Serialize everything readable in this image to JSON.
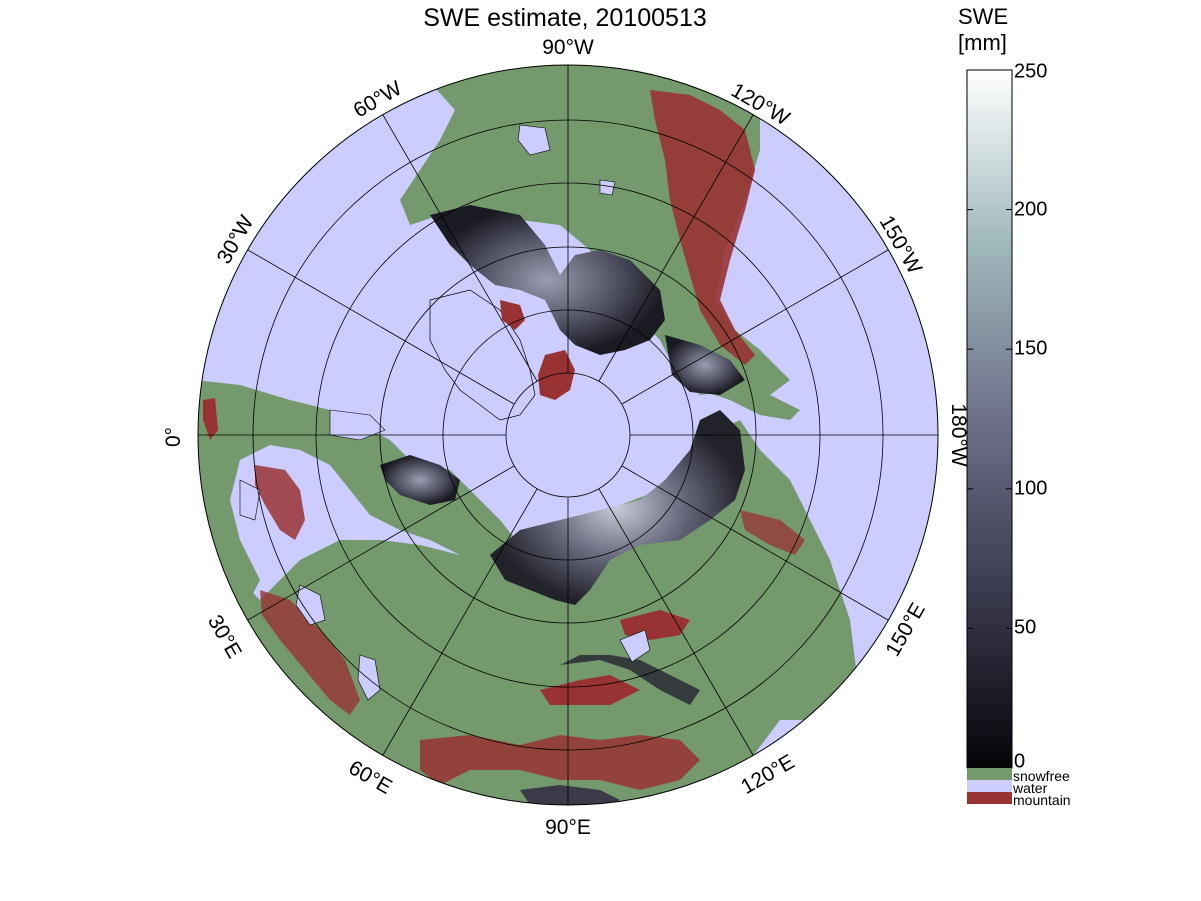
{
  "title": "SWE estimate, 20100513",
  "colorbar": {
    "label_line1": "SWE",
    "label_line2": "[mm]",
    "ticks": [
      "250",
      "200",
      "150",
      "100",
      "50",
      "0"
    ],
    "range": [
      0,
      250
    ],
    "categories": [
      {
        "label": "snowfree",
        "color": "#73996d"
      },
      {
        "label": "water",
        "color": "#ccccff"
      },
      {
        "label": "mountain",
        "color": "#993333"
      }
    ]
  },
  "map": {
    "projection": "north polar stereographic",
    "longitude_labels": {
      "lon_90W": "90°W",
      "lon_120W": "120°W",
      "lon_150W": "150°W",
      "lon_180W": "180°W",
      "lon_150E": "150°E",
      "lon_120E": "120°E",
      "lon_90E": "90°E",
      "lon_60E": "60°E",
      "lon_30E": "30°E",
      "lon_0": "0°",
      "lon_30W": "30°W",
      "lon_60W": "60°W"
    },
    "colors": {
      "water": "#ccccff",
      "snowfree": "#73996d",
      "mountain": "#993333",
      "snow_low": "#111115",
      "snow_high": "#ffffff"
    }
  }
}
